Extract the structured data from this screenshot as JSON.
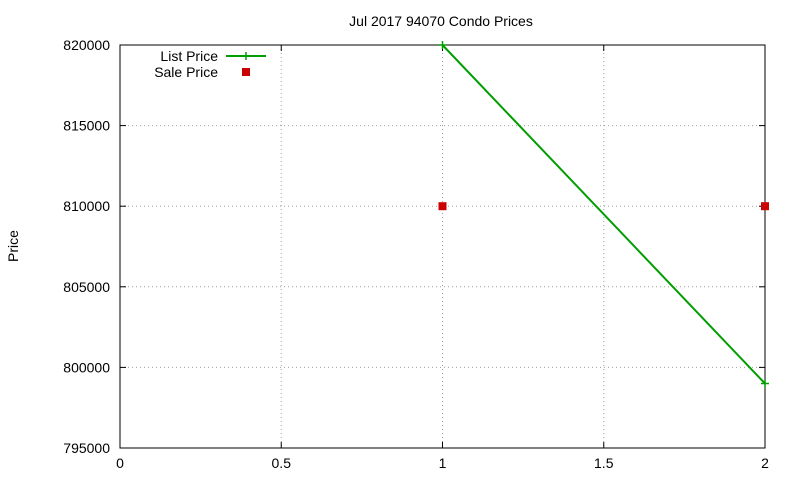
{
  "chart_data": {
    "type": "line",
    "title": "Jul 2017 94070 Condo Prices",
    "xlabel": "",
    "ylabel": "Price",
    "xlim": [
      0,
      2
    ],
    "ylim": [
      795000,
      820000
    ],
    "x_ticks": [
      0,
      0.5,
      1,
      1.5,
      2
    ],
    "x_tick_labels": [
      "0",
      "0.5",
      "1",
      "1.5",
      "2"
    ],
    "y_ticks": [
      795000,
      800000,
      805000,
      810000,
      815000,
      820000
    ],
    "y_tick_labels": [
      "795000",
      "800000",
      "805000",
      "810000",
      "815000",
      "820000"
    ],
    "grid": true,
    "legend_position": "top-left",
    "series": [
      {
        "name": "List Price",
        "style": "line-with-plus-markers",
        "color": "#009e00",
        "points": [
          {
            "x": 1,
            "y": 820000
          },
          {
            "x": 2,
            "y": 799000
          }
        ]
      },
      {
        "name": "Sale Price",
        "style": "square-markers",
        "color": "#cc0000",
        "points": [
          {
            "x": 1,
            "y": 810000
          },
          {
            "x": 2,
            "y": 810000
          }
        ]
      }
    ]
  }
}
